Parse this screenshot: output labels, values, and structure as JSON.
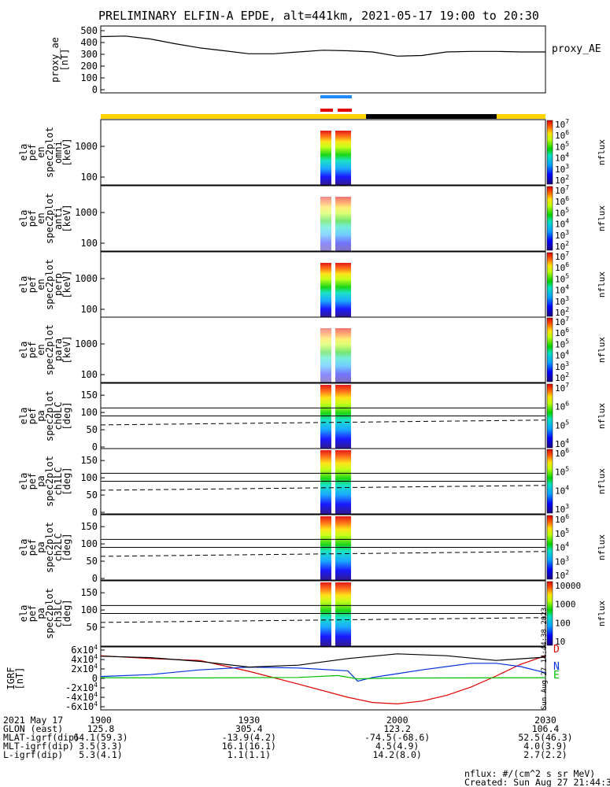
{
  "title": "PRELIMINARY ELFIN-A EPDE, alt=441km, 2021-05-17 19:00 to 20:30",
  "chart_data": {
    "type": "multi-panel spectrogram / line stack",
    "time_axis": {
      "start": "19:00",
      "end": "20:30",
      "ticks": [
        "1900",
        "1930",
        "2000",
        "2030"
      ]
    },
    "panels": [
      {
        "id": "ae",
        "type": "line",
        "ylabel": [
          "proxy_ae",
          "[nT]"
        ],
        "ylim": [
          0,
          500
        ],
        "yticks": [
          "500",
          "400",
          "300",
          "200",
          "100",
          "0"
        ],
        "legend": "proxy_AE",
        "series": [
          {
            "name": "proxy_AE",
            "x_min": [
              0,
              5,
              10,
              15,
              20,
              25,
              30,
              35,
              40,
              45,
              50,
              55,
              60,
              65,
              70,
              75,
              80,
              85,
              90
            ],
            "values": [
              450,
              455,
              430,
              390,
              355,
              330,
              305,
              305,
              320,
              335,
              330,
              320,
              285,
              290,
              320,
              325,
              325,
              320,
              320
            ]
          }
        ]
      },
      {
        "id": "s0",
        "type": "spectrogram",
        "ylabel": [
          "ela",
          "pef",
          "en",
          "spec2plot",
          "omni",
          "[keV]"
        ],
        "yticks": [
          "1000",
          "100"
        ],
        "cbar": {
          "label": "nflux",
          "ticks": [
            "10^7",
            "10^6",
            "10^5",
            "10^4",
            "10^3",
            "10^2"
          ]
        }
      },
      {
        "id": "s1",
        "type": "spectrogram",
        "ylabel": [
          "ela",
          "pef",
          "en",
          "spec2plot",
          "anti",
          "[keV]"
        ],
        "yticks": [
          "1000",
          "100"
        ],
        "cbar": {
          "label": "nflux",
          "ticks": [
            "10^7",
            "10^6",
            "10^5",
            "10^4",
            "10^3",
            "10^2"
          ]
        }
      },
      {
        "id": "s2",
        "type": "spectrogram",
        "ylabel": [
          "ela",
          "pef",
          "en",
          "spec2plot",
          "perp",
          "[keV]"
        ],
        "yticks": [
          "1000",
          "100"
        ],
        "cbar": {
          "label": "nflux",
          "ticks": [
            "10^7",
            "10^6",
            "10^5",
            "10^4",
            "10^3",
            "10^2"
          ]
        }
      },
      {
        "id": "s3",
        "type": "spectrogram",
        "ylabel": [
          "ela",
          "pef",
          "en",
          "spec2plot",
          "para",
          "[keV]"
        ],
        "yticks": [
          "1000",
          "100"
        ],
        "cbar": {
          "label": "nflux",
          "ticks": [
            "10^7",
            "10^6",
            "10^5",
            "10^4",
            "10^3",
            "10^2"
          ]
        }
      },
      {
        "id": "p0",
        "type": "spectrogram",
        "ylabel": [
          "ela",
          "pef",
          "pa",
          "spec2plot",
          "ch0LC",
          "[deg]"
        ],
        "yticks": [
          "150",
          "100",
          "50",
          "0"
        ],
        "cbar": {
          "label": "nflux",
          "ticks": [
            "10^7",
            "10^6",
            "10^5",
            "10^4"
          ]
        }
      },
      {
        "id": "p1",
        "type": "spectrogram",
        "ylabel": [
          "ela",
          "pef",
          "pa",
          "spec2plot",
          "ch1LC",
          "[deg]"
        ],
        "yticks": [
          "150",
          "100",
          "50",
          "0"
        ],
        "cbar": {
          "label": "nflux",
          "ticks": [
            "10^6",
            "10^5",
            "10^4",
            "10^3"
          ]
        }
      },
      {
        "id": "p2",
        "type": "spectrogram",
        "ylabel": [
          "ela",
          "pef",
          "pa",
          "spec2plot",
          "ch2LC",
          "[deg]"
        ],
        "yticks": [
          "150",
          "100",
          "50",
          "0"
        ],
        "cbar": {
          "label": "nflux",
          "ticks": [
            "10^6",
            "10^5",
            "10^4",
            "10^3",
            "10^2"
          ]
        }
      },
      {
        "id": "p3",
        "type": "spectrogram",
        "ylabel": [
          "ela",
          "pef",
          "pa",
          "spec2plot",
          "ch3LC",
          "[deg]"
        ],
        "yticks": [
          "150",
          "100",
          "50"
        ],
        "cbar": {
          "label": "nflux",
          "ticks": [
            "10000",
            "1000",
            "100",
            "10"
          ]
        }
      },
      {
        "id": "b",
        "type": "line",
        "ylabel": [
          "IGRF",
          "[nT]"
        ],
        "ylim": [
          -60000,
          60000
        ],
        "yticks": [
          "6x10^4",
          "4x10^4",
          "2x10^4",
          "0",
          "-2x10^4",
          "-4x10^4",
          "-6x10^4"
        ],
        "legend": [
          "D",
          "N",
          "E"
        ],
        "series": [
          {
            "name": "D",
            "color": "#e00000",
            "x_min": [
              0,
              10,
              20,
              30,
              40,
              50,
              55,
              60,
              65,
              70,
              75,
              80,
              85,
              90
            ],
            "values": [
              48000,
              42000,
              38000,
              15000,
              -12000,
              -40000,
              -51000,
              -54000,
              -48000,
              -36000,
              -18000,
              5000,
              30000,
              48000
            ]
          },
          {
            "name": "N",
            "color": "#0030e0",
            "x_min": [
              0,
              10,
              20,
              30,
              40,
              50,
              52,
              55,
              60,
              65,
              70,
              75,
              80,
              85,
              90
            ],
            "values": [
              4000,
              8000,
              18000,
              24000,
              22000,
              16000,
              -6000,
              2000,
              10000,
              18000,
              25000,
              32000,
              32000,
              25000,
              12000
            ]
          },
          {
            "name": "E",
            "color": "#00c000",
            "x_min": [
              0,
              20,
              40,
              48,
              52,
              55,
              60,
              90
            ],
            "values": [
              1500,
              1000,
              2000,
              6000,
              -1000,
              0,
              800,
              1500
            ]
          },
          {
            "name": "total",
            "color": "#000000",
            "x_min": [
              0,
              10,
              20,
              30,
              40,
              50,
              60,
              70,
              80,
              90
            ],
            "values": [
              47000,
              44000,
              36000,
              24000,
              28000,
              42000,
              52000,
              48000,
              38000,
              45000
            ]
          }
        ]
      }
    ]
  },
  "footer": {
    "rows": [
      {
        "label": "2021 May 17",
        "values": [
          "1900",
          "1930",
          "2000",
          "2030"
        ]
      },
      {
        "label": "GLON (east)",
        "values": [
          "125.8",
          "305.4",
          "123.2",
          "106.4"
        ]
      },
      {
        "label": "MLAT-igrf(dip)",
        "values": [
          "64.1(59.3)",
          "-13.9(4.2)",
          "-74.5(-68.6)",
          "52.5(46.3)"
        ]
      },
      {
        "label": "MLT-igrf(dip)",
        "values": [
          "3.5(3.3)",
          "16.1(16.1)",
          "4.5(4.9)",
          "4.0(3.9)"
        ]
      },
      {
        "label": "L-igrf(dip)",
        "values": [
          "5.3(4.1)",
          "1.1(1.1)",
          "14.2(8.0)",
          "2.7(2.2)"
        ]
      }
    ],
    "units": "nflux: #/(cm^2 s sr MeV)",
    "created": "Created: Sun Aug 27 21:44:39 2023",
    "side_stamp": "Sun Aug 27 14:44:38 2023"
  },
  "colors": {
    "sunlit_bar": "#ffd400",
    "shadow_bar": "#000000",
    "science_blue": "#1e8cff",
    "science_red": "#e00000"
  }
}
